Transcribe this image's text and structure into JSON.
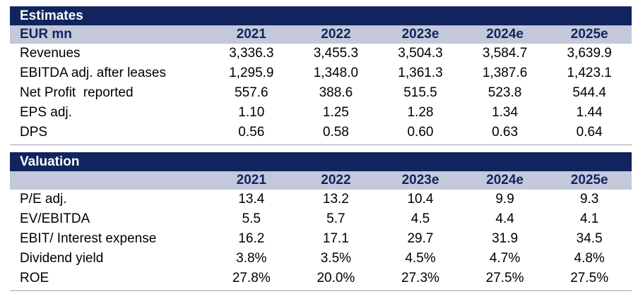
{
  "estimates": {
    "title": "Estimates",
    "label_header": "EUR mn",
    "columns": [
      "2021",
      "2022",
      "2023e",
      "2024e",
      "2025e"
    ],
    "rows": [
      {
        "label": "Revenues",
        "values": [
          "3,336.3",
          "3,455.3",
          "3,504.3",
          "3,584.7",
          "3,639.9"
        ]
      },
      {
        "label": "EBITDA adj. after leases",
        "values": [
          "1,295.9",
          "1,348.0",
          "1,361.3",
          "1,387.6",
          "1,423.1"
        ]
      },
      {
        "label": "Net Profit  reported",
        "values": [
          "557.6",
          "388.6",
          "515.5",
          "523.8",
          "544.4"
        ]
      },
      {
        "label": "EPS adj.",
        "values": [
          "1.10",
          "1.25",
          "1.28",
          "1.34",
          "1.44"
        ]
      },
      {
        "label": "DPS",
        "values": [
          "0.56",
          "0.58",
          "0.60",
          "0.63",
          "0.64"
        ]
      }
    ]
  },
  "valuation": {
    "title": "Valuation",
    "label_header": "",
    "columns": [
      "2021",
      "2022",
      "2023e",
      "2024e",
      "2025e"
    ],
    "rows": [
      {
        "label": "P/E adj.",
        "values": [
          "13.4",
          "13.2",
          "10.4",
          "9.9",
          "9.3"
        ]
      },
      {
        "label": "EV/EBITDA",
        "values": [
          "5.5",
          "5.7",
          "4.5",
          "4.4",
          "4.1"
        ]
      },
      {
        "label": "EBIT/ Interest expense",
        "values": [
          "16.2",
          "17.1",
          "29.7",
          "31.9",
          "34.5"
        ]
      },
      {
        "label": "Dividend yield",
        "values": [
          "3.8%",
          "3.5%",
          "4.5%",
          "4.7%",
          "4.8%"
        ]
      },
      {
        "label": "ROE",
        "values": [
          "27.8%",
          "20.0%",
          "27.3%",
          "27.5%",
          "27.5%"
        ]
      }
    ]
  },
  "colors": {
    "title_bar": "#11245e",
    "header_band": "#c3c9da",
    "header_text": "#11245e"
  }
}
